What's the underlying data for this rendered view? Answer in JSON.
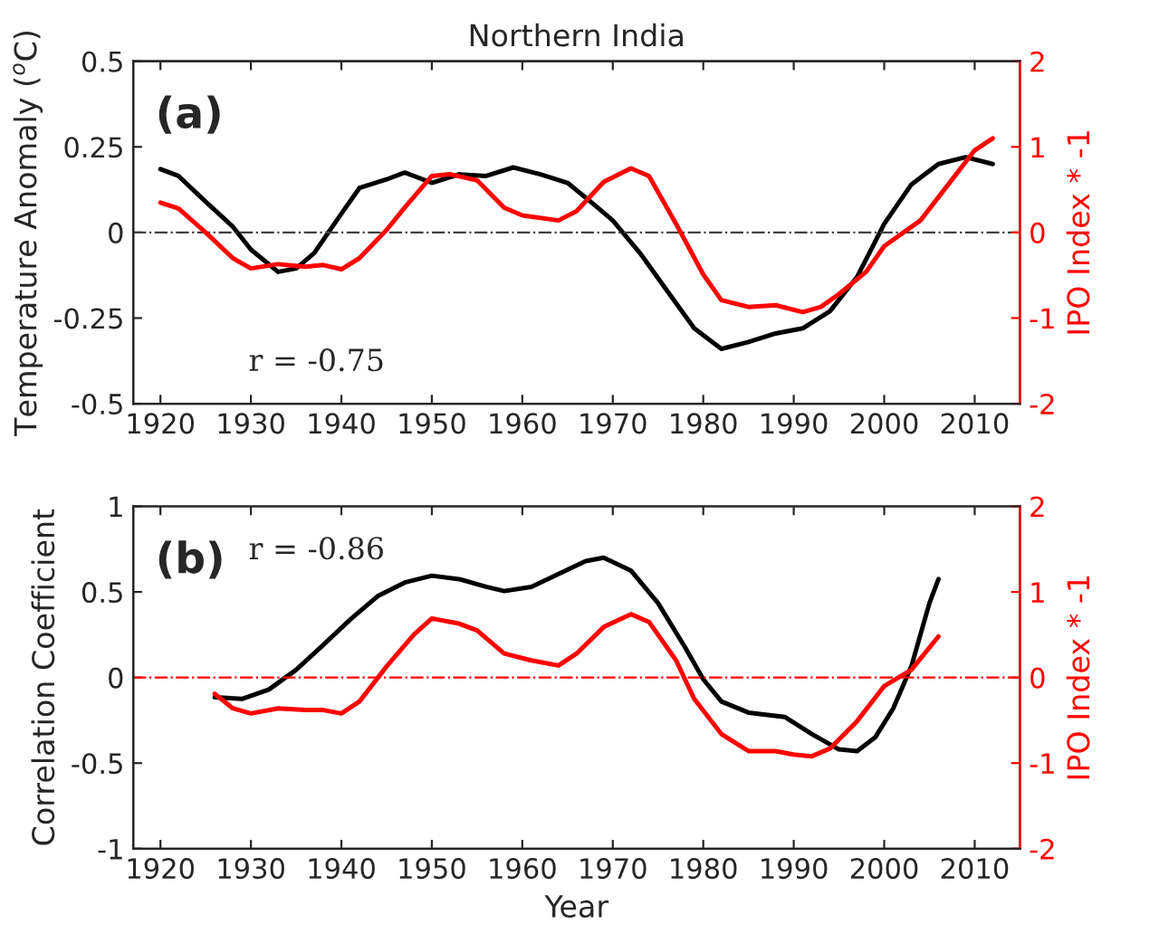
{
  "chart_data": [
    {
      "type": "line",
      "title": "Northern India",
      "ylabel": "Temperature Anomaly ($^{o}$C)",
      "y2label": "IPO Index * -1",
      "annotations": [
        "(a)",
        "r = -0.75"
      ],
      "xlim": [
        1917,
        2015
      ],
      "xticks": [
        1920,
        1930,
        1940,
        1950,
        1960,
        1970,
        1980,
        1990,
        2000,
        2010
      ],
      "ylim": [
        -0.5,
        0.5
      ],
      "yticks": [
        -0.5,
        -0.25,
        0,
        0.25,
        0.5
      ],
      "y2lim": [
        -2,
        2
      ],
      "y2ticks": [
        -2,
        -1,
        0,
        1,
        2
      ],
      "grid": false,
      "legend": false,
      "line_style": "solid",
      "ref_lines": [
        {
          "axis": "y",
          "value": 0,
          "label": null,
          "color": "#404040",
          "line_style": "dashed"
        }
      ],
      "series": [
        {
          "color": "#000000",
          "x": [
            1920,
            1922,
            1925,
            1928,
            1930,
            1933,
            1935,
            1937,
            1940,
            1942,
            1945,
            1947,
            1950,
            1953,
            1956,
            1959,
            1962,
            1965,
            1968,
            1970,
            1973,
            1976,
            1979,
            1982,
            1985,
            1988,
            1991,
            1994,
            1997,
            2000,
            2003,
            2006,
            2009,
            2012
          ],
          "values": [
            0.185,
            0.165,
            0.09,
            0.017,
            -0.05,
            -0.115,
            -0.105,
            -0.06,
            0.055,
            0.13,
            0.155,
            0.175,
            0.145,
            0.17,
            0.165,
            0.19,
            0.17,
            0.145,
            0.08,
            0.035,
            -0.06,
            -0.17,
            -0.28,
            -0.34,
            -0.32,
            -0.295,
            -0.28,
            -0.23,
            -0.13,
            0.025,
            0.14,
            0.2,
            0.22,
            0.2
          ]
        },
        {
          "color": "#ff0000",
          "axis": "y2",
          "x": [
            1920,
            1922,
            1925,
            1928,
            1930,
            1933,
            1936,
            1938,
            1940,
            1942,
            1945,
            1947,
            1950,
            1952,
            1955,
            1958,
            1960,
            1964,
            1966,
            1969,
            1972,
            1974,
            1977,
            1980,
            1982,
            1985,
            1988,
            1991,
            1993,
            1995,
            1998,
            2000,
            2004,
            2007,
            2010,
            2012
          ],
          "values": [
            0.35,
            0.28,
            0,
            -0.3,
            -0.42,
            -0.37,
            -0.4,
            -0.38,
            -0.43,
            -0.3,
            0.03,
            0.29,
            0.66,
            0.68,
            0.61,
            0.29,
            0.2,
            0.14,
            0.25,
            0.59,
            0.75,
            0.66,
            0.1,
            -0.49,
            -0.79,
            -0.87,
            -0.85,
            -0.93,
            -0.87,
            -0.72,
            -0.46,
            -0.16,
            0.14,
            0.55,
            0.96,
            1.1
          ]
        }
      ]
    },
    {
      "type": "line",
      "xlabel": "Year",
      "ylabel": "Correlation Coefficient",
      "y2label": "IPO Index * -1",
      "annotations": [
        "(b)",
        "r = -0.86"
      ],
      "xlim": [
        1917,
        2015
      ],
      "xticks": [
        1920,
        1930,
        1940,
        1950,
        1960,
        1970,
        1980,
        1990,
        2000,
        2010
      ],
      "ylim": [
        -1,
        1
      ],
      "yticks": [
        -1,
        -0.5,
        0,
        0.5,
        1
      ],
      "y2lim": [
        -2,
        2
      ],
      "y2ticks": [
        -2,
        -1,
        0,
        1,
        2
      ],
      "grid": false,
      "legend": false,
      "line_style": "solid",
      "ref_lines": [
        {
          "axis": "y",
          "value": 0,
          "label": null,
          "color": "#ff0000",
          "line_style": "dashed"
        }
      ],
      "series": [
        {
          "color": "#000000",
          "x": [
            1926,
            1929,
            1932,
            1935,
            1938,
            1941,
            1944,
            1947,
            1950,
            1953,
            1956,
            1958,
            1961,
            1964,
            1967,
            1969,
            1972,
            1975,
            1978,
            1980,
            1982,
            1985,
            1989,
            1992,
            1995,
            1997,
            1999,
            2001,
            2003,
            2005,
            2006
          ],
          "values": [
            -0.115,
            -0.125,
            -0.07,
            0.045,
            0.19,
            0.34,
            0.475,
            0.555,
            0.595,
            0.575,
            0.53,
            0.505,
            0.53,
            0.605,
            0.68,
            0.7,
            0.625,
            0.435,
            0.175,
            -0.01,
            -0.14,
            -0.205,
            -0.23,
            -0.33,
            -0.42,
            -0.43,
            -0.35,
            -0.18,
            0.065,
            0.435,
            0.575
          ]
        },
        {
          "color": "#ff0000",
          "axis": "y2",
          "x": [
            1926,
            1928,
            1930,
            1933,
            1936,
            1938,
            1940,
            1942,
            1945,
            1948,
            1950,
            1953,
            1955,
            1958,
            1961,
            1964,
            1966,
            1969,
            1972,
            1974,
            1977,
            1979,
            1982,
            1985,
            1988,
            1990,
            1992,
            1994,
            1997,
            2000,
            2003,
            2006
          ],
          "values": [
            -0.19,
            -0.36,
            -0.42,
            -0.36,
            -0.38,
            -0.38,
            -0.42,
            -0.28,
            0.13,
            0.5,
            0.69,
            0.63,
            0.55,
            0.28,
            0.2,
            0.14,
            0.28,
            0.59,
            0.74,
            0.65,
            0.2,
            -0.25,
            -0.66,
            -0.86,
            -0.86,
            -0.9,
            -0.92,
            -0.83,
            -0.51,
            -0.1,
            0.09,
            0.48
          ]
        }
      ]
    }
  ]
}
